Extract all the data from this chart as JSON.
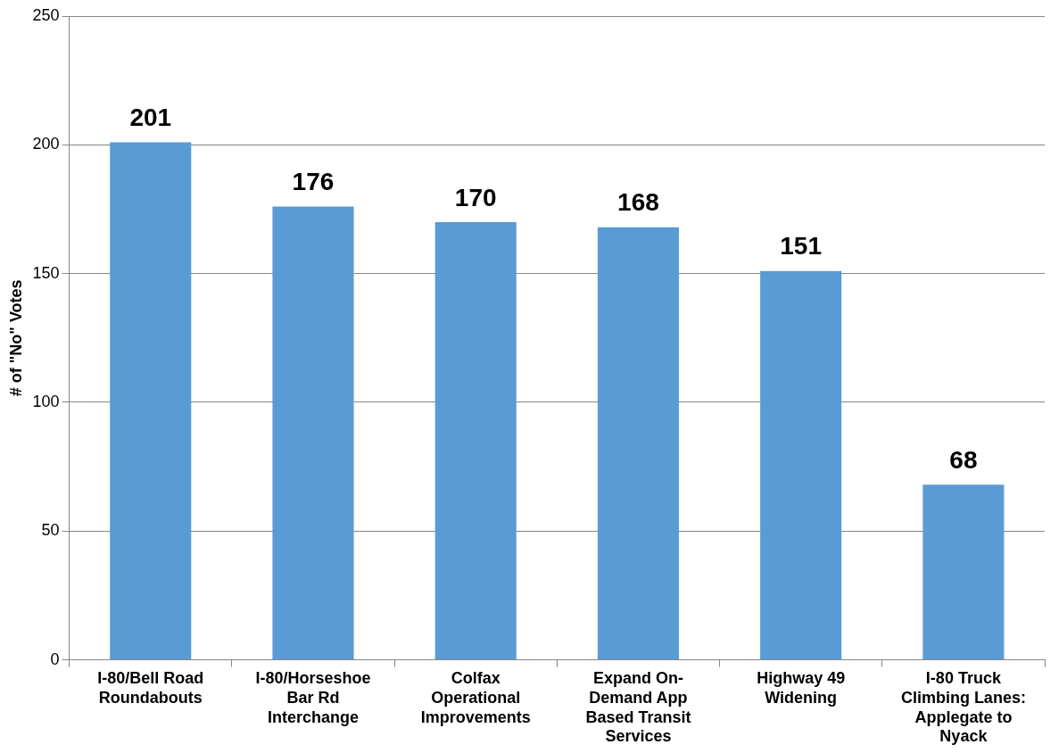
{
  "chart_data": {
    "type": "bar",
    "ylabel": "# of \"No\" Votes",
    "categories": [
      "I-80/Bell Road Roundabouts",
      "I-80/Horseshoe Bar Rd Interchange",
      "Colfax Operational Improvements",
      "Expand On-Demand App Based Transit Services",
      "Highway 49 Widening",
      "I-80 Truck Climbing Lanes: Applegate to Nyack"
    ],
    "values": [
      201,
      176,
      170,
      168,
      151,
      68
    ],
    "color": "#5b9bd5",
    "ylim": [
      0,
      250
    ],
    "yticks": [
      0,
      50,
      100,
      150,
      200,
      250
    ],
    "grid": "y",
    "data_labels": true,
    "legend": false
  }
}
